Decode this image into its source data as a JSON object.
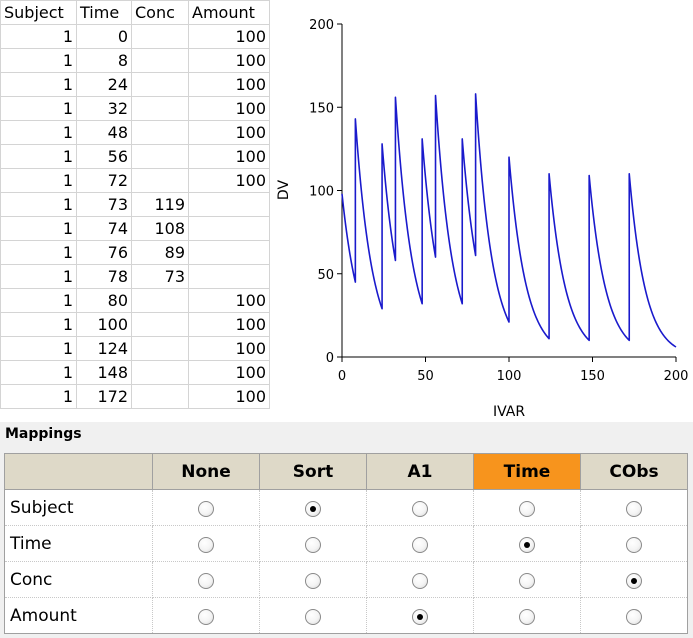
{
  "data_grid": {
    "columns": [
      "Subject",
      "Time",
      "Conc",
      "Amount"
    ],
    "rows": [
      [
        "1",
        "0",
        "",
        "100"
      ],
      [
        "1",
        "8",
        "",
        "100"
      ],
      [
        "1",
        "24",
        "",
        "100"
      ],
      [
        "1",
        "32",
        "",
        "100"
      ],
      [
        "1",
        "48",
        "",
        "100"
      ],
      [
        "1",
        "56",
        "",
        "100"
      ],
      [
        "1",
        "72",
        "",
        "100"
      ],
      [
        "1",
        "73",
        "119",
        ""
      ],
      [
        "1",
        "74",
        "108",
        ""
      ],
      [
        "1",
        "76",
        "89",
        ""
      ],
      [
        "1",
        "78",
        "73",
        ""
      ],
      [
        "1",
        "80",
        "",
        "100"
      ],
      [
        "1",
        "100",
        "",
        "100"
      ],
      [
        "1",
        "124",
        "",
        "100"
      ],
      [
        "1",
        "148",
        "",
        "100"
      ],
      [
        "1",
        "172",
        "",
        "100"
      ]
    ]
  },
  "chart_data": {
    "type": "line",
    "title": "",
    "xlabel": "IVAR",
    "ylabel": "DV",
    "xlim": [
      0,
      200
    ],
    "ylim": [
      0,
      200
    ],
    "xticks": [
      0,
      50,
      100,
      150,
      200
    ],
    "yticks": [
      0,
      50,
      100,
      150,
      200
    ],
    "grid": false,
    "line_color": "#1a1acc",
    "series": [
      {
        "name": "",
        "segments": [
          {
            "t_start": 0,
            "t_end": 8,
            "y_start": 98,
            "y_end": 45
          },
          {
            "t_start": 8,
            "t_end": 24,
            "y_start": 143,
            "y_end": 29
          },
          {
            "t_start": 24,
            "t_end": 32,
            "y_start": 128,
            "y_end": 58
          },
          {
            "t_start": 32,
            "t_end": 48,
            "y_start": 156,
            "y_end": 32
          },
          {
            "t_start": 48,
            "t_end": 56,
            "y_start": 131,
            "y_end": 60
          },
          {
            "t_start": 56,
            "t_end": 72,
            "y_start": 157,
            "y_end": 32
          },
          {
            "t_start": 72,
            "t_end": 80,
            "y_start": 131,
            "y_end": 61
          },
          {
            "t_start": 80,
            "t_end": 100,
            "y_start": 158,
            "y_end": 21
          },
          {
            "t_start": 100,
            "t_end": 124,
            "y_start": 120,
            "y_end": 11
          },
          {
            "t_start": 124,
            "t_end": 148,
            "y_start": 110,
            "y_end": 10
          },
          {
            "t_start": 148,
            "t_end": 172,
            "y_start": 109,
            "y_end": 10
          },
          {
            "t_start": 172,
            "t_end": 200,
            "y_start": 110,
            "y_end": 6
          }
        ]
      }
    ]
  },
  "mappings": {
    "title": "Mappings",
    "columns": [
      "None",
      "Sort",
      "A1",
      "Time",
      "CObs"
    ],
    "highlighted_column": "Time",
    "highlight_color": "#f7941d",
    "rows": [
      {
        "label": "Subject",
        "selected": "Sort"
      },
      {
        "label": "Time",
        "selected": "Time"
      },
      {
        "label": "Conc",
        "selected": "CObs"
      },
      {
        "label": "Amount",
        "selected": "A1"
      }
    ]
  }
}
